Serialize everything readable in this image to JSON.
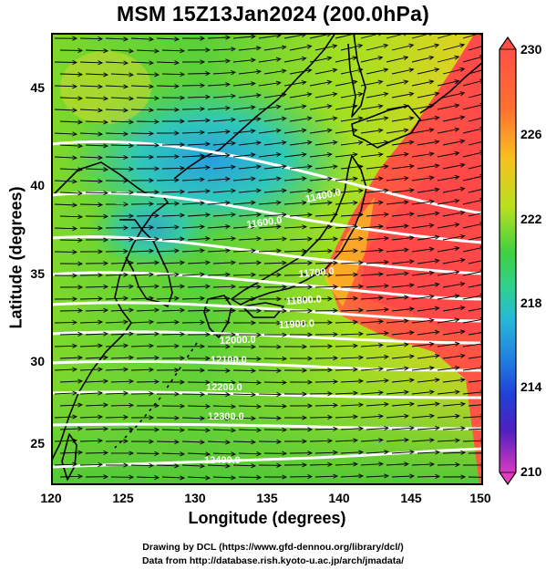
{
  "title": "MSM 15Z13Jan2024 (200.0hPa)",
  "x_axis": {
    "label": "Longitude (degrees)",
    "ticks": [
      "120",
      "125",
      "130",
      "135",
      "140",
      "145",
      "150"
    ]
  },
  "y_axis": {
    "label": "Latitude  (degrees)",
    "ticks": [
      "25",
      "30",
      "35",
      "40",
      "45"
    ]
  },
  "colorbar": {
    "ticks": [
      "230",
      "226",
      "222",
      "218",
      "214",
      "210"
    ]
  },
  "contour_labels": [
    "11400.0",
    "11600.0",
    "11700.0",
    "11800.0",
    "11900.0",
    "12000.0",
    "12100.0",
    "12200.0",
    "12300.0",
    "12400.0"
  ],
  "credits": {
    "line1": "Drawing by DCL (https://www.gfd-dennou.org/library/dcl/)",
    "line2": "Data from http://database.rish.kyoto-u.ac.jp/arch/jmadata/"
  },
  "map_extent": {
    "lon": [
      120,
      150
    ],
    "lat": [
      22.5,
      48
    ]
  },
  "colorbar_range": [
    210,
    230
  ],
  "colors": {
    "warm": "#ff4a4a",
    "mid": "#40d040",
    "cool": "#30a8d8",
    "coast": "#000000",
    "contour": "#ffffff",
    "vector": "#000000"
  },
  "features": [
    "temperature-shading",
    "geopotential-height-contours",
    "wind-vectors",
    "coastlines"
  ]
}
